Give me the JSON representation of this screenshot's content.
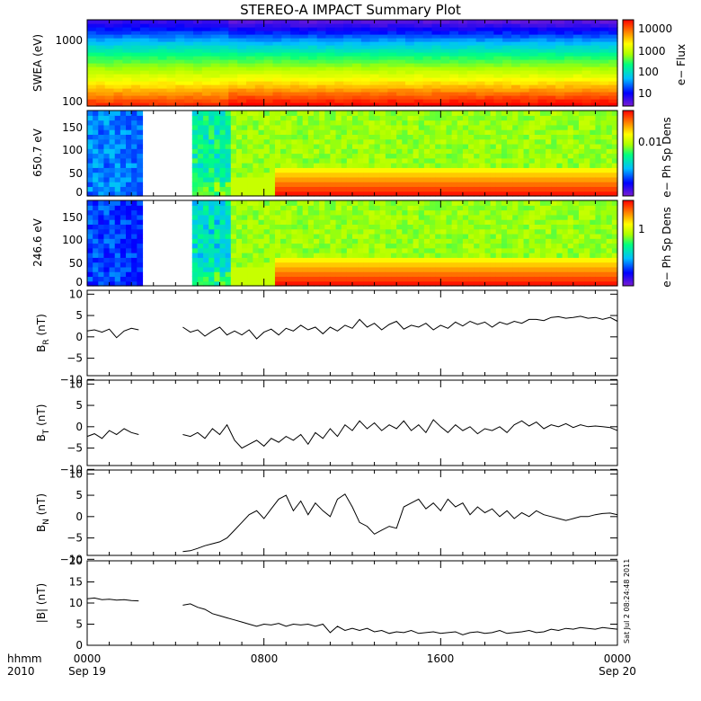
{
  "chart_data": [
    {
      "type": "heatmap",
      "title": "STEREO-A IMPACT Summary Plot",
      "ylabel": "SWEA (eV)",
      "ylim": [
        100,
        1600
      ],
      "yscale": "log",
      "yticks": [
        "1000",
        "100"
      ],
      "colorbar": {
        "label": "e− Flux",
        "scale": "log",
        "range": [
          3,
          20000
        ],
        "ticks": [
          "10000",
          "1000",
          "100",
          "10"
        ]
      },
      "colors": [
        "#7a1cd1",
        "#0000ff",
        "#00bfff",
        "#00ff80",
        "#aaff00",
        "#ffff00",
        "#ff8000",
        "#ff0000"
      ]
    },
    {
      "type": "heatmap",
      "ylabel": "650.7 eV",
      "ylim": [
        0,
        180
      ],
      "yticks": [
        "150",
        "100",
        "50",
        "0"
      ],
      "data_gap": [
        "0230",
        "0430"
      ],
      "colorbar": {
        "label": "e− Ph Sp Dens",
        "scale": "log",
        "ticks": [
          "0.01"
        ]
      }
    },
    {
      "type": "heatmap",
      "ylabel": "246.6 eV",
      "ylim": [
        0,
        180
      ],
      "yticks": [
        "150",
        "100",
        "50",
        "0"
      ],
      "data_gap": [
        "0230",
        "0430"
      ],
      "colorbar": {
        "label": "e− Ph Sp Dens",
        "scale": "log",
        "ticks": [
          "1"
        ]
      }
    },
    {
      "type": "line",
      "ylabel_main": "B",
      "ylabel_sub": "R",
      "ylabel_unit": "(nT)",
      "ylim": [
        -11,
        11
      ],
      "yticks": [
        "10",
        "5",
        "0",
        "−5",
        "−10"
      ],
      "x_hours": [
        0,
        0.33,
        0.67,
        1.0,
        1.33,
        1.67,
        2.0,
        2.33,
        4.33,
        4.67,
        5.0,
        5.33,
        5.67,
        6.0,
        6.33,
        6.67,
        7.0,
        7.33,
        7.67,
        8.0,
        8.33,
        8.67,
        9.0,
        9.33,
        9.67,
        10.0,
        10.33,
        10.67,
        11.0,
        11.33,
        11.67,
        12.0,
        12.33,
        12.67,
        13.0,
        13.33,
        13.67,
        14.0,
        14.33,
        14.67,
        15.0,
        15.33,
        15.67,
        16.0,
        16.33,
        16.67,
        17.0,
        17.33,
        17.67,
        18.0,
        18.33,
        18.67,
        19.0,
        19.33,
        19.67,
        20.0,
        20.33,
        20.67,
        21.0,
        21.33,
        21.67,
        22.0,
        22.33,
        22.67,
        23.0,
        23.33,
        23.67,
        24.0
      ],
      "values": [
        0.5,
        0.8,
        0.2,
        1.0,
        -1.2,
        0.5,
        1.2,
        0.8,
        1.5,
        0.2,
        0.8,
        -0.8,
        0.5,
        1.5,
        -0.5,
        0.5,
        -0.5,
        0.8,
        -1.5,
        0.2,
        1.0,
        -0.5,
        1.2,
        0.5,
        2.0,
        0.8,
        1.5,
        -0.2,
        1.5,
        0.5,
        2.0,
        1.2,
        3.5,
        1.5,
        2.5,
        0.8,
        2.2,
        3.0,
        1.0,
        2.0,
        1.5,
        2.5,
        0.8,
        2.0,
        1.2,
        2.8,
        1.8,
        3.0,
        2.2,
        2.8,
        1.5,
        2.8,
        2.2,
        3.0,
        2.5,
        3.5,
        3.5,
        3.2,
        4.0,
        4.2,
        3.8,
        4.0,
        4.3,
        3.8,
        4.0,
        3.5,
        4.0,
        3.0
      ]
    },
    {
      "type": "line",
      "ylabel_main": "B",
      "ylabel_sub": "T",
      "ylabel_unit": "(nT)",
      "ylim": [
        -11,
        11
      ],
      "yticks": [
        "10",
        "5",
        "0",
        "−5",
        "−10"
      ],
      "x_hours": [
        0,
        0.33,
        0.67,
        1.0,
        1.33,
        1.67,
        2.0,
        2.33,
        4.33,
        4.67,
        5.0,
        5.33,
        5.67,
        6.0,
        6.33,
        6.67,
        7.0,
        7.33,
        7.67,
        8.0,
        8.33,
        8.67,
        9.0,
        9.33,
        9.67,
        10.0,
        10.33,
        10.67,
        11.0,
        11.33,
        11.67,
        12.0,
        12.33,
        12.67,
        13.0,
        13.33,
        13.67,
        14.0,
        14.33,
        14.67,
        15.0,
        15.33,
        15.67,
        16.0,
        16.33,
        16.67,
        17.0,
        17.33,
        17.67,
        18.0,
        18.33,
        18.67,
        19.0,
        19.33,
        19.67,
        20.0,
        20.33,
        20.67,
        21.0,
        21.33,
        21.67,
        22.0,
        22.33,
        22.67,
        23.0,
        23.33,
        23.67,
        24.0
      ],
      "values": [
        -3.5,
        -2.8,
        -4.0,
        -2.0,
        -3.0,
        -1.5,
        -2.5,
        -3.0,
        -3.0,
        -3.5,
        -2.5,
        -4.0,
        -1.5,
        -3.0,
        -0.5,
        -4.5,
        -6.5,
        -5.5,
        -4.5,
        -6.0,
        -4.0,
        -5.0,
        -3.5,
        -4.5,
        -3.0,
        -5.5,
        -2.5,
        -4.0,
        -1.5,
        -3.5,
        -0.5,
        -2.0,
        0.5,
        -1.5,
        0.0,
        -2.0,
        -0.5,
        -1.5,
        0.5,
        -2.0,
        -0.5,
        -2.5,
        0.8,
        -1.0,
        -2.5,
        -0.5,
        -2.0,
        -1.0,
        -2.8,
        -1.5,
        -2.0,
        -1.0,
        -2.5,
        -0.5,
        0.5,
        -0.8,
        0.2,
        -1.5,
        -0.5,
        -1.0,
        -0.2,
        -1.2,
        -0.5,
        -1.0,
        -0.8,
        -1.0,
        -1.2,
        -2.0
      ]
    },
    {
      "type": "line",
      "ylabel_main": "B",
      "ylabel_sub": "N",
      "ylabel_unit": "(nT)",
      "ylim": [
        -11,
        11
      ],
      "yticks": [
        "10",
        "5",
        "0",
        "−5",
        "−10"
      ],
      "x_hours": [
        4.33,
        4.67,
        5.0,
        5.33,
        5.67,
        6.0,
        6.33,
        6.67,
        7.0,
        7.33,
        7.67,
        8.0,
        8.33,
        8.67,
        9.0,
        9.33,
        9.67,
        10.0,
        10.33,
        10.67,
        11.0,
        11.33,
        11.67,
        12.0,
        12.33,
        12.67,
        13.0,
        13.33,
        13.67,
        14.0,
        14.33,
        14.67,
        15.0,
        15.33,
        15.67,
        16.0,
        16.33,
        16.67,
        17.0,
        17.33,
        17.67,
        18.0,
        18.33,
        18.67,
        19.0,
        19.33,
        19.67,
        20.0,
        20.33,
        20.67,
        21.0,
        21.33,
        21.67,
        22.0,
        22.33,
        22.67,
        23.0,
        23.33,
        23.67,
        24.0
      ],
      "values": [
        -10.0,
        -9.8,
        -9.2,
        -8.5,
        -8.0,
        -7.5,
        -6.5,
        -4.5,
        -2.5,
        -0.5,
        0.5,
        -1.5,
        1.0,
        3.5,
        4.5,
        0.5,
        3.0,
        -0.5,
        2.5,
        0.5,
        -1.0,
        3.5,
        4.8,
        1.5,
        -2.5,
        -3.5,
        -5.5,
        -4.5,
        -3.5,
        -4.0,
        1.5,
        2.5,
        3.5,
        1.0,
        2.5,
        0.5,
        3.5,
        1.5,
        2.5,
        -0.5,
        1.5,
        0.0,
        1.0,
        -1.0,
        0.5,
        -1.5,
        0.0,
        -1.0,
        0.5,
        -0.5,
        -1.0,
        -1.5,
        -2.0,
        -1.5,
        -1.0,
        -1.0,
        -0.5,
        -0.2,
        -0.1,
        -0.5
      ]
    },
    {
      "type": "line",
      "ylabel_main": "|B|",
      "ylabel_sub": "",
      "ylabel_unit": "(nT)",
      "ylim": [
        0,
        20
      ],
      "yticks": [
        "20",
        "15",
        "10",
        "5",
        "0"
      ],
      "x_hours": [
        0,
        0.33,
        0.67,
        1.0,
        1.33,
        1.67,
        2.0,
        2.33,
        4.33,
        4.67,
        5.0,
        5.33,
        5.67,
        6.0,
        6.33,
        6.67,
        7.0,
        7.33,
        7.67,
        8.0,
        8.33,
        8.67,
        9.0,
        9.33,
        9.67,
        10.0,
        10.33,
        10.67,
        11.0,
        11.33,
        11.67,
        12.0,
        12.33,
        12.67,
        13.0,
        13.33,
        13.67,
        14.0,
        14.33,
        14.67,
        15.0,
        15.33,
        15.67,
        16.0,
        16.33,
        16.67,
        17.0,
        17.33,
        17.67,
        18.0,
        18.33,
        18.67,
        19.0,
        19.33,
        19.67,
        20.0,
        20.33,
        20.67,
        21.0,
        21.33,
        21.67,
        22.0,
        22.33,
        22.67,
        23.0,
        23.33,
        23.67,
        24.0
      ],
      "values": [
        11.0,
        11.2,
        10.8,
        10.9,
        10.7,
        10.8,
        10.6,
        10.5,
        9.5,
        9.8,
        9.0,
        8.5,
        7.5,
        7.0,
        6.5,
        6.0,
        5.5,
        5.0,
        4.5,
        5.0,
        4.8,
        5.2,
        4.5,
        5.0,
        4.8,
        5.0,
        4.5,
        5.0,
        3.0,
        4.5,
        3.5,
        4.0,
        3.5,
        4.0,
        3.2,
        3.5,
        2.8,
        3.2,
        3.0,
        3.5,
        2.8,
        3.0,
        3.2,
        2.8,
        3.0,
        3.2,
        2.5,
        3.0,
        3.2,
        2.8,
        3.0,
        3.5,
        2.8,
        3.0,
        3.2,
        3.5,
        3.0,
        3.2,
        3.8,
        3.5,
        4.0,
        3.8,
        4.2,
        4.0,
        3.8,
        4.2,
        4.0,
        3.8
      ]
    }
  ],
  "axis": {
    "top_label": "hhmm",
    "bottom_label": "2010",
    "xticks": [
      {
        "hhmm": "0000",
        "date": "Sep 19"
      },
      {
        "hhmm": "0800",
        "date": ""
      },
      {
        "hhmm": "1600",
        "date": ""
      },
      {
        "hhmm": "0000",
        "date": "Sep 20"
      }
    ]
  },
  "stamp": "Sat Jul  2 08:24:48 2011"
}
